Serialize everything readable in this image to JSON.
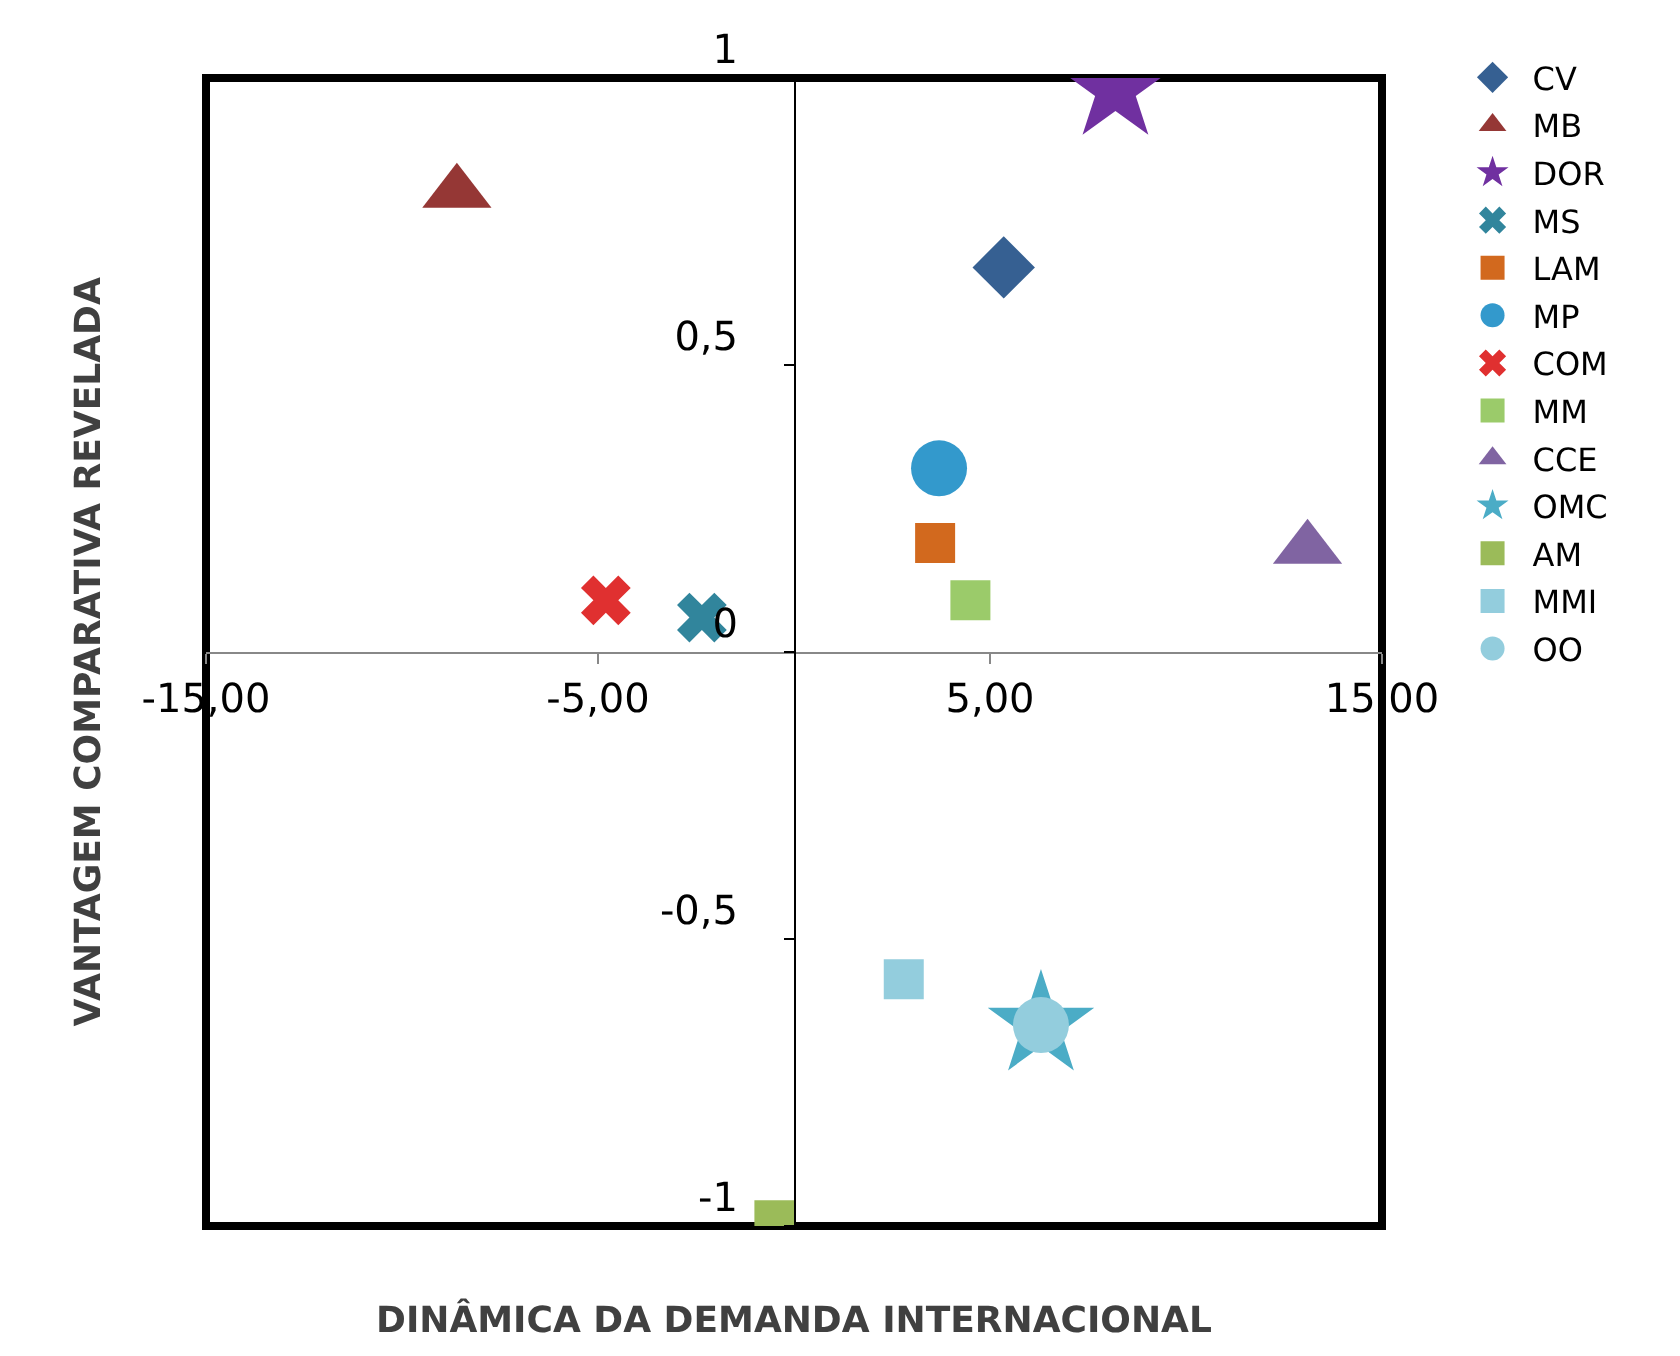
{
  "chart_data": {
    "type": "scatter",
    "xlabel": "DINÂMICA DA DEMANDA INTERNACIONAL",
    "ylabel": "VANTAGEM COMPARATIVA REVELADA",
    "xlim": [
      -15,
      15
    ],
    "ylim": [
      -1,
      1
    ],
    "xticks": [
      {
        "value": -15,
        "label": "-15,00"
      },
      {
        "value": -5,
        "label": "-5,00"
      },
      {
        "value": 5,
        "label": "5,00"
      },
      {
        "value": 15,
        "label": "15,00"
      }
    ],
    "yticks": [
      -1,
      {
        "value": -0.5,
        "label": "-0,5"
      },
      0,
      {
        "value": 0.5,
        "label": "0,5"
      },
      1
    ],
    "grid": false,
    "legend": "right",
    "series": [
      {
        "name": "CV",
        "color": "#366092",
        "marker": "diamond",
        "x": [
          5.35
        ],
        "values": [
          0.67
        ]
      },
      {
        "name": "MB",
        "color": "#953735",
        "marker": "triangle",
        "x": [
          -8.6
        ],
        "values": [
          0.8
        ]
      },
      {
        "name": "DOR",
        "color": "#7030a0",
        "marker": "star",
        "x": [
          8.2
        ],
        "values": [
          0.98
        ]
      },
      {
        "name": "MS",
        "color": "#31859c",
        "marker": "cross",
        "x": [
          -2.35
        ],
        "values": [
          0.06
        ]
      },
      {
        "name": "LAM",
        "color": "#d2691e",
        "marker": "square",
        "x": [
          3.6
        ],
        "values": [
          0.19
        ]
      },
      {
        "name": "MP",
        "color": "#3399cc",
        "marker": "circle",
        "x": [
          3.7
        ],
        "values": [
          0.32
        ]
      },
      {
        "name": "COM",
        "color": "#e03030",
        "marker": "cross",
        "x": [
          -4.8
        ],
        "values": [
          0.09
        ]
      },
      {
        "name": "MM",
        "color": "#9bcb6a",
        "marker": "square",
        "x": [
          4.5
        ],
        "values": [
          0.09
        ]
      },
      {
        "name": "CCE",
        "color": "#8064a2",
        "marker": "triangle",
        "x": [
          13.1
        ],
        "values": [
          0.18
        ]
      },
      {
        "name": "OMC",
        "color": "#4bacc6",
        "marker": "star",
        "x": [
          6.3
        ],
        "values": [
          -0.65
        ]
      },
      {
        "name": "AM",
        "color": "#9bbb59",
        "marker": "square",
        "x": [
          -0.5
        ],
        "values": [
          -0.99
        ]
      },
      {
        "name": "MMI",
        "color": "#93cddd",
        "marker": "square",
        "x": [
          2.8
        ],
        "values": [
          -0.57
        ]
      },
      {
        "name": "OO",
        "color": "#93cddd",
        "marker": "circle",
        "x": [
          6.3
        ],
        "values": [
          -0.65
        ]
      }
    ]
  }
}
